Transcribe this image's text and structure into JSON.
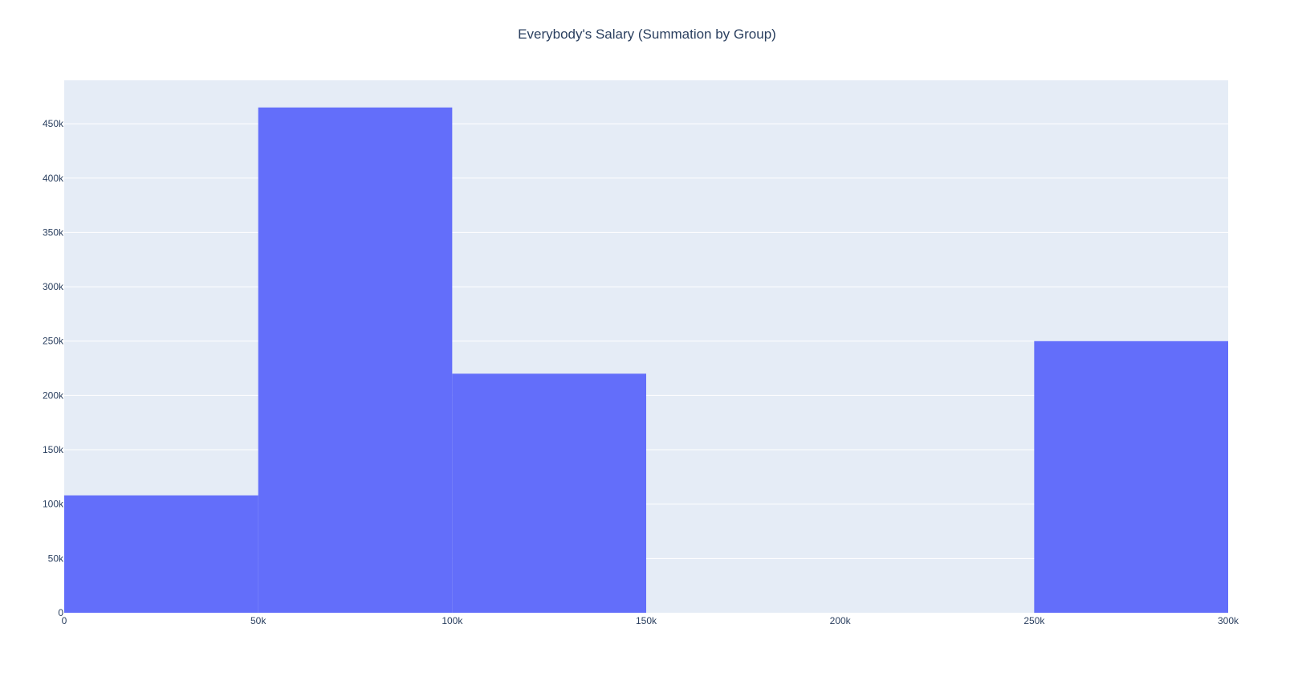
{
  "chart_data": {
    "type": "bar",
    "title": "Everybody's Salary (Summation by Group)",
    "xlabel": "",
    "ylabel": "",
    "bins": [
      {
        "start": 0,
        "end": 50000,
        "value": 108000
      },
      {
        "start": 50000,
        "end": 100000,
        "value": 465000
      },
      {
        "start": 100000,
        "end": 150000,
        "value": 220000
      },
      {
        "start": 150000,
        "end": 200000,
        "value": 0
      },
      {
        "start": 200000,
        "end": 250000,
        "value": 0
      },
      {
        "start": 250000,
        "end": 300000,
        "value": 250000
      }
    ],
    "xlim": [
      0,
      300000
    ],
    "ylim": [
      0,
      490000
    ],
    "x_ticks": [
      {
        "value": 0,
        "label": "0"
      },
      {
        "value": 50000,
        "label": "50k"
      },
      {
        "value": 100000,
        "label": "100k"
      },
      {
        "value": 150000,
        "label": "150k"
      },
      {
        "value": 200000,
        "label": "200k"
      },
      {
        "value": 250000,
        "label": "250k"
      },
      {
        "value": 300000,
        "label": "300k"
      }
    ],
    "y_ticks": [
      {
        "value": 0,
        "label": "0"
      },
      {
        "value": 50000,
        "label": "50k"
      },
      {
        "value": 100000,
        "label": "100k"
      },
      {
        "value": 150000,
        "label": "150k"
      },
      {
        "value": 200000,
        "label": "200k"
      },
      {
        "value": 250000,
        "label": "250k"
      },
      {
        "value": 300000,
        "label": "300k"
      },
      {
        "value": 350000,
        "label": "350k"
      },
      {
        "value": 400000,
        "label": "400k"
      },
      {
        "value": 450000,
        "label": "450k"
      }
    ],
    "grid": true,
    "legend": "none",
    "colors": {
      "bar": "#636efa",
      "plot_bg": "#e5ecf6",
      "grid": "#ffffff",
      "text": "#2a3f5f"
    }
  }
}
